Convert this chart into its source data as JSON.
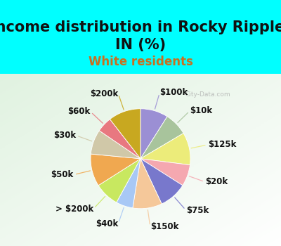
{
  "title": "Income distribution in Rocky Ripple,\nIN (%)",
  "subtitle": "White residents",
  "bg_color": "#00FFFF",
  "chart_bg_color": "#e8f5ee",
  "labels": [
    "$100k",
    "$10k",
    "$125k",
    "$20k",
    "$75k",
    "$150k",
    "$40k",
    "> $200k",
    "$50k",
    "$30k",
    "$60k",
    "$200k"
  ],
  "sizes": [
    9.0,
    7.5,
    10.5,
    7.0,
    9.0,
    9.5,
    5.5,
    8.0,
    10.5,
    8.0,
    5.0,
    10.5
  ],
  "colors": [
    "#9b8fd4",
    "#a8c49c",
    "#ecec7a",
    "#f5a8b0",
    "#7878cc",
    "#f5c89a",
    "#a8c8f5",
    "#c8e860",
    "#f0a850",
    "#d0c8a8",
    "#e87880",
    "#c8a820"
  ],
  "startangle": 90,
  "title_fontsize": 15,
  "subtitle_fontsize": 12,
  "label_fontsize": 8.5,
  "subtitle_color": "#c87020"
}
